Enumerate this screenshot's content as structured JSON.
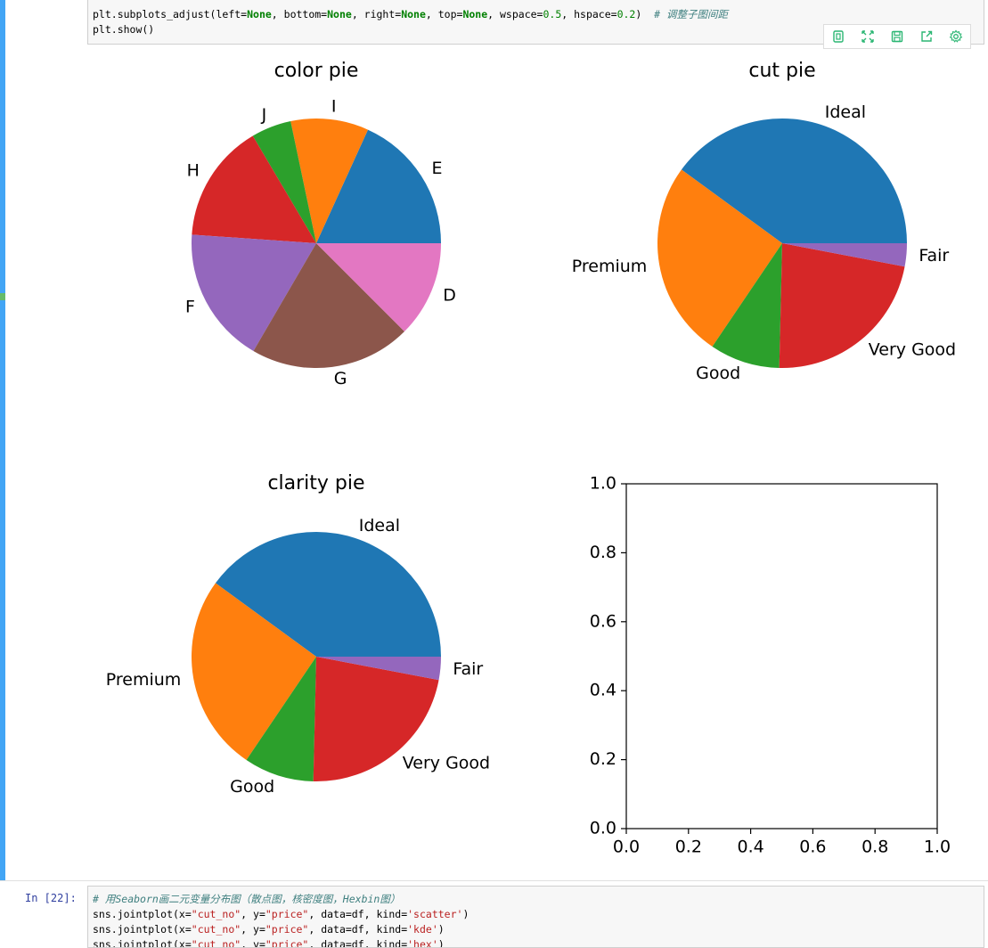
{
  "notebook": {
    "cell1_code": [
      [
        {
          "t": "plt.subplots_adjust(left="
        },
        {
          "t": "None",
          "c": "kw"
        },
        {
          "t": ", bottom="
        },
        {
          "t": "None",
          "c": "kw"
        },
        {
          "t": ", right="
        },
        {
          "t": "None",
          "c": "kw"
        },
        {
          "t": ", top="
        },
        {
          "t": "None",
          "c": "kw"
        },
        {
          "t": ", wspace="
        },
        {
          "t": "0.5",
          "c": "num"
        },
        {
          "t": ", hspace="
        },
        {
          "t": "0.2",
          "c": "num"
        },
        {
          "t": ")  "
        },
        {
          "t": "# 调整子图间距",
          "c": "cm"
        }
      ],
      [
        {
          "t": "plt.show()"
        }
      ]
    ],
    "cell2_prompt": "In  [22]:",
    "cell2_code": [
      [
        {
          "t": "# 用Seaborn画二元变量分布图（散点图，核密度图，Hexbin图）",
          "c": "cm"
        }
      ],
      [
        {
          "t": "sns.jointplot(x="
        },
        {
          "t": "\"cut_no\"",
          "c": "str"
        },
        {
          "t": ", y="
        },
        {
          "t": "\"price\"",
          "c": "str"
        },
        {
          "t": ", data=df, kind="
        },
        {
          "t": "'scatter'",
          "c": "str"
        },
        {
          "t": ")"
        }
      ],
      [
        {
          "t": "sns.jointplot(x="
        },
        {
          "t": "\"cut_no\"",
          "c": "str"
        },
        {
          "t": ", y="
        },
        {
          "t": "\"price\"",
          "c": "str"
        },
        {
          "t": ", data=df, kind="
        },
        {
          "t": "'kde'",
          "c": "str"
        },
        {
          "t": ")"
        }
      ],
      [
        {
          "t": "sns.jointplot(x="
        },
        {
          "t": "\"cut_no\"",
          "c": "str"
        },
        {
          "t": ", y="
        },
        {
          "t": "\"price\"",
          "c": "str"
        },
        {
          "t": ", data=df, kind="
        },
        {
          "t": "'hex'",
          "c": "str"
        },
        {
          "t": ")"
        }
      ]
    ],
    "toolbar_icons": [
      "copy-icon",
      "expand-icon",
      "save-icon",
      "share-icon",
      "settings-icon"
    ],
    "accent_color": "#42a5f5"
  },
  "chart_data": [
    {
      "type": "pie",
      "title": "color pie",
      "categories": [
        "E",
        "I",
        "J",
        "H",
        "F",
        "G",
        "D"
      ],
      "values": [
        18.2,
        10.1,
        5.2,
        15.4,
        17.7,
        20.9,
        12.5
      ],
      "colors": [
        "#1f77b4",
        "#ff7f0e",
        "#2ca02c",
        "#d62728",
        "#9467bd",
        "#8c564b",
        "#e377c2"
      ]
    },
    {
      "type": "pie",
      "title": "cut pie",
      "categories": [
        "Ideal",
        "Premium",
        "Good",
        "Very Good",
        "Fair"
      ],
      "values": [
        40.0,
        25.6,
        9.1,
        22.4,
        3.0
      ],
      "colors": [
        "#1f77b4",
        "#ff7f0e",
        "#2ca02c",
        "#d62728",
        "#9467bd"
      ]
    },
    {
      "type": "pie",
      "title": "clarity pie",
      "categories": [
        "Ideal",
        "Premium",
        "Good",
        "Very Good",
        "Fair"
      ],
      "values": [
        40.0,
        25.6,
        9.1,
        22.4,
        3.0
      ],
      "colors": [
        "#1f77b4",
        "#ff7f0e",
        "#2ca02c",
        "#d62728",
        "#9467bd"
      ]
    },
    {
      "type": "scatter",
      "title": "",
      "xlim": [
        0.0,
        1.0
      ],
      "ylim": [
        0.0,
        1.0
      ],
      "xticks": [
        "0.0",
        "0.2",
        "0.4",
        "0.6",
        "0.8",
        "1.0"
      ],
      "yticks": [
        "0.0",
        "0.2",
        "0.4",
        "0.6",
        "0.8",
        "1.0"
      ],
      "series": []
    }
  ]
}
